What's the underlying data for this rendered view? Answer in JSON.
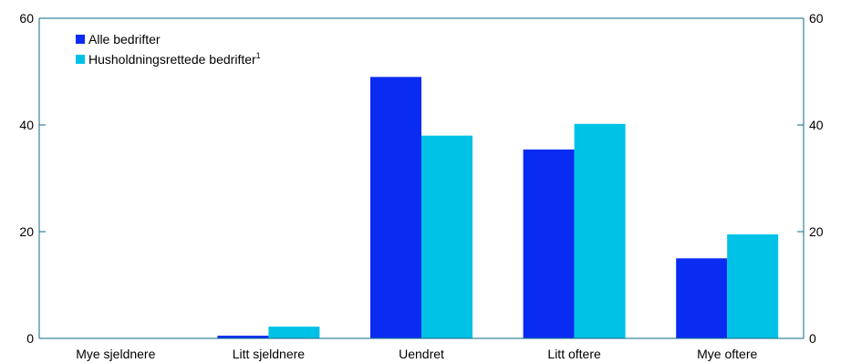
{
  "chart_data": {
    "type": "bar",
    "categories": [
      "Mye sjeldnere",
      "Litt sjeldnere",
      "Uendret",
      "Litt oftere",
      "Mye oftere"
    ],
    "series": [
      {
        "name": "Alle bedrifter",
        "values": [
          0,
          0.5,
          49,
          35.4,
          15
        ],
        "color": "#0a2cf2"
      },
      {
        "name": "Husholdningsrettede bedrifter",
        "superscript": "1",
        "values": [
          0,
          2.2,
          38,
          40.2,
          19.5
        ],
        "color": "#00c2e6"
      }
    ],
    "ylim": [
      0,
      60
    ],
    "yticks": [
      0,
      20,
      40,
      60
    ],
    "y_axis_both_sides": true,
    "grid": false,
    "legend_position": "top-left",
    "axis_color": "#0b6a88"
  }
}
